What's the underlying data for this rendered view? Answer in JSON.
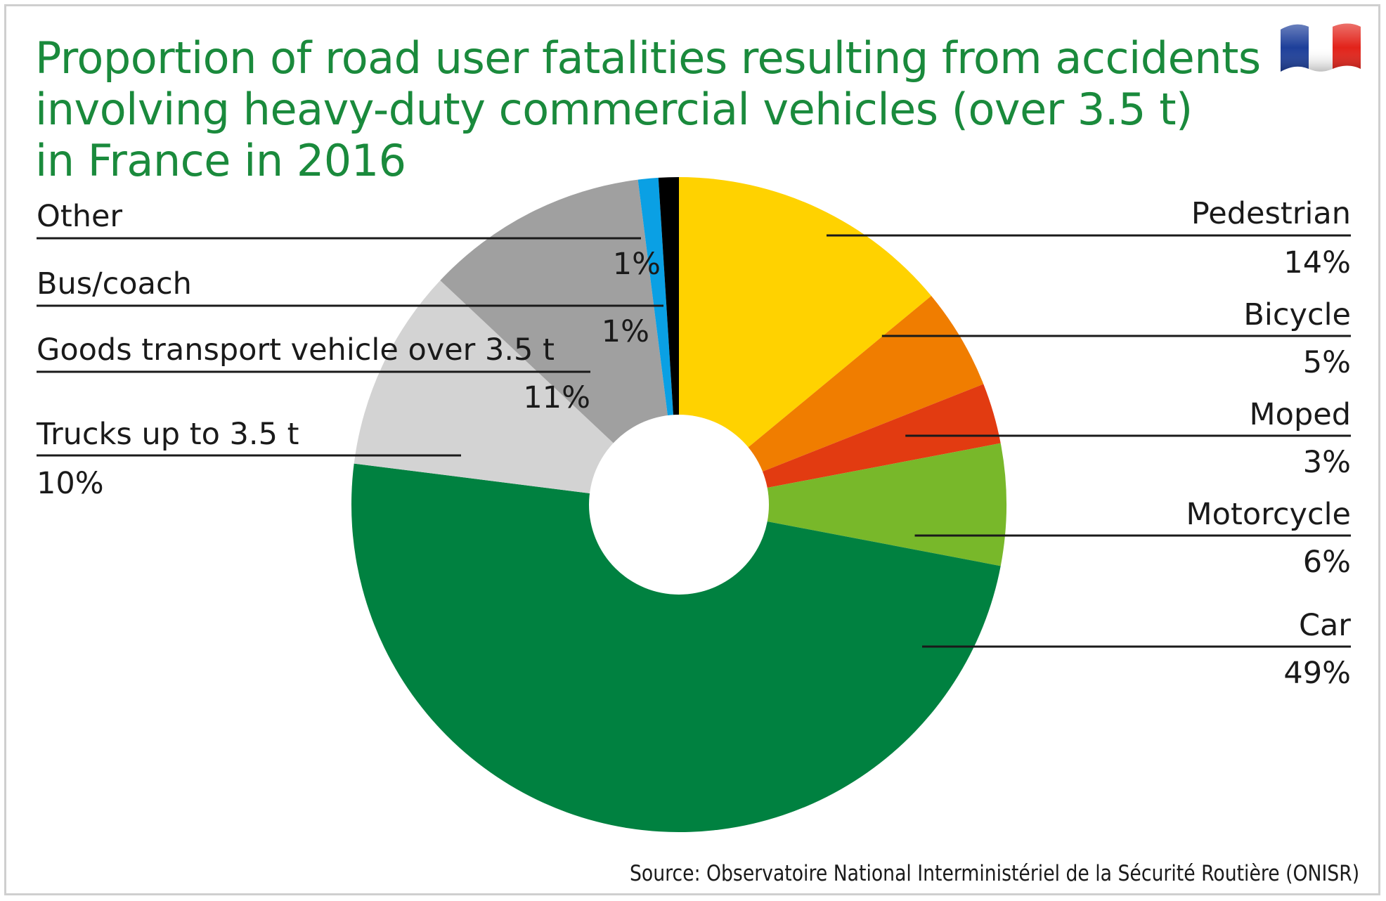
{
  "chart_data": {
    "type": "pie",
    "title_lines": [
      "Proportion of road user fatalities resulting from accidents",
      "involving heavy-duty commercial vehicles (over 3.5 t)",
      "in France in 2016"
    ],
    "unit": "%",
    "slices": [
      {
        "name": "Pedestrian",
        "value": 14,
        "label": "14%",
        "color": "#ffd200"
      },
      {
        "name": "Bicycle",
        "value": 5,
        "label": "5%",
        "color": "#f07d00"
      },
      {
        "name": "Moped",
        "value": 3,
        "label": "3%",
        "color": "#e23b11"
      },
      {
        "name": "Motorcycle",
        "value": 6,
        "label": "6%",
        "color": "#78b82a"
      },
      {
        "name": "Car",
        "value": 49,
        "label": "49%",
        "color": "#008140"
      },
      {
        "name": "Trucks up to 3.5 t",
        "value": 10,
        "label": "10%",
        "color": "#d3d3d3"
      },
      {
        "name": "Goods transport vehicle over 3.5 t",
        "value": 11,
        "label": "11%",
        "color": "#a0a0a0"
      },
      {
        "name": "Bus/coach",
        "value": 1,
        "label": "1%",
        "color": "#0aa0e4"
      },
      {
        "name": "Other",
        "value": 1,
        "label": "1%",
        "color": "#000000"
      }
    ],
    "source": "Source: Observatoire National Interministériel de la Sécurité Routière (ONISR)"
  },
  "flag": {
    "icon": "france-flag-icon",
    "colors": [
      "#1d3f9a",
      "#ffffff",
      "#e2231a"
    ]
  }
}
